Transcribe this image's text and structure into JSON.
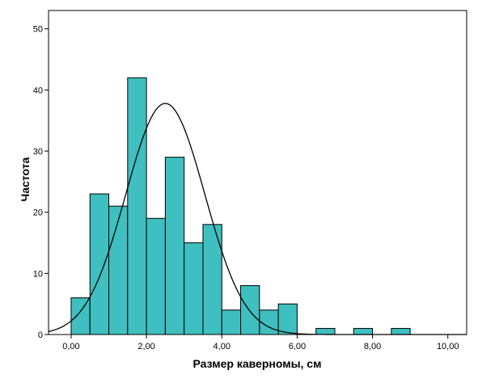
{
  "chart_data": {
    "type": "bar",
    "subtype": "histogram",
    "xlabel": "Размер каверномы, см",
    "ylabel": "Частота",
    "xlim": [
      -0.6,
      10.5
    ],
    "ylim": [
      0,
      53
    ],
    "x_ticks": [
      0,
      2,
      4,
      6,
      8,
      10
    ],
    "x_tick_labels": [
      "0,00",
      "2,00",
      "4,00",
      "6,00",
      "8,00",
      "10,00"
    ],
    "y_ticks": [
      0,
      10,
      20,
      30,
      40,
      50
    ],
    "y_tick_labels": [
      "0",
      "10",
      "20",
      "30",
      "40",
      "50"
    ],
    "bin_width": 0.5,
    "bins": [
      {
        "x0": 0.0,
        "x1": 0.5,
        "count": 6
      },
      {
        "x0": 0.5,
        "x1": 1.0,
        "count": 23
      },
      {
        "x0": 1.0,
        "x1": 1.5,
        "count": 21
      },
      {
        "x0": 1.5,
        "x1": 2.0,
        "count": 42
      },
      {
        "x0": 2.0,
        "x1": 2.5,
        "count": 19
      },
      {
        "x0": 2.5,
        "x1": 3.0,
        "count": 29
      },
      {
        "x0": 3.0,
        "x1": 3.5,
        "count": 15
      },
      {
        "x0": 3.5,
        "x1": 4.0,
        "count": 18
      },
      {
        "x0": 4.0,
        "x1": 4.5,
        "count": 4
      },
      {
        "x0": 4.5,
        "x1": 5.0,
        "count": 8
      },
      {
        "x0": 5.0,
        "x1": 5.5,
        "count": 4
      },
      {
        "x0": 5.5,
        "x1": 6.0,
        "count": 5
      },
      {
        "x0": 6.5,
        "x1": 7.0,
        "count": 1
      },
      {
        "x0": 7.5,
        "x1": 8.0,
        "count": 1
      },
      {
        "x0": 8.5,
        "x1": 9.0,
        "count": 1
      }
    ],
    "normal_curve": {
      "mean": 2.5,
      "sd": 1.05,
      "peak": 37.8
    },
    "colors": {
      "bar_fill": "#3fbfbf",
      "bar_stroke": "#000000",
      "curve": "#000000"
    },
    "grid": false
  }
}
